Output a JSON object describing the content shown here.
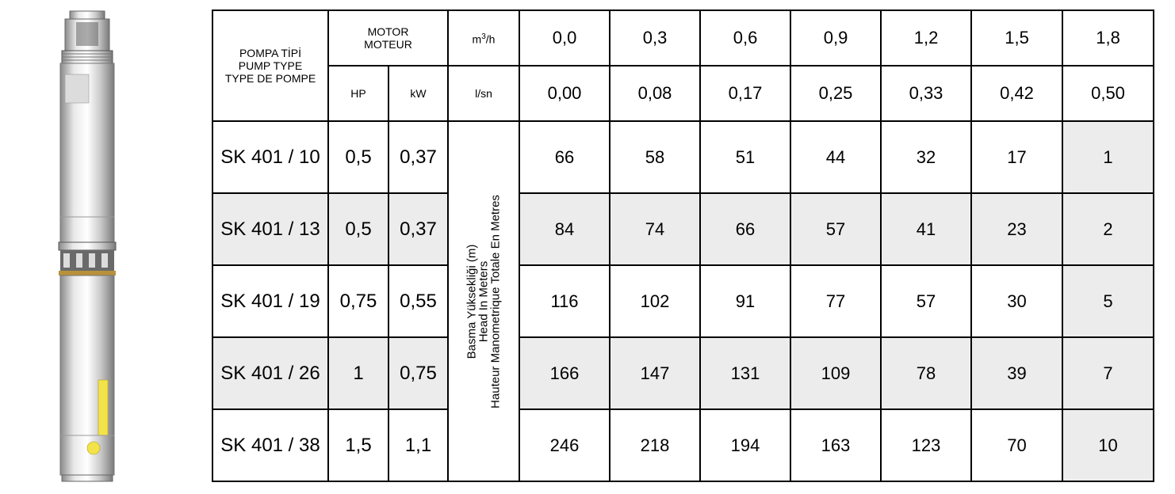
{
  "header": {
    "pump_type": [
      "POMPA TİPİ",
      "PUMP TYPE",
      "TYPE DE POMPE"
    ],
    "motor": [
      "MOTOR",
      "MOTEUR"
    ],
    "hp": "HP",
    "kw": "kW",
    "flow_unit_m3h": "m³/h",
    "flow_unit_lsn": "l/sn",
    "flow_m3h": [
      "0,0",
      "0,3",
      "0,6",
      "0,9",
      "1,2",
      "1,5",
      "1,8"
    ],
    "flow_lsn": [
      "0,00",
      "0,08",
      "0,17",
      "0,25",
      "0,33",
      "0,42",
      "0,50"
    ],
    "head_label": [
      "Basma Yüksekliği (m)",
      "Head In Meters",
      "Hauteur Manometrique Totale En Metres"
    ]
  },
  "rows": [
    {
      "model": "SK 401 / 10",
      "hp": "0,5",
      "kw": "0,37",
      "values": [
        "66",
        "58",
        "51",
        "44",
        "32",
        "17",
        "1"
      ]
    },
    {
      "model": "SK 401 / 13",
      "hp": "0,5",
      "kw": "0,37",
      "values": [
        "84",
        "74",
        "66",
        "57",
        "41",
        "23",
        "2"
      ]
    },
    {
      "model": "SK 401 / 19",
      "hp": "0,75",
      "kw": "0,55",
      "values": [
        "116",
        "102",
        "91",
        "77",
        "57",
        "30",
        "5"
      ]
    },
    {
      "model": "SK 401 / 26",
      "hp": "1",
      "kw": "0,75",
      "values": [
        "166",
        "147",
        "131",
        "109",
        "78",
        "39",
        "7"
      ]
    },
    {
      "model": "SK 401 / 38",
      "hp": "1,5",
      "kw": "1,1",
      "values": [
        "246",
        "218",
        "194",
        "163",
        "123",
        "70",
        "10"
      ]
    }
  ]
}
